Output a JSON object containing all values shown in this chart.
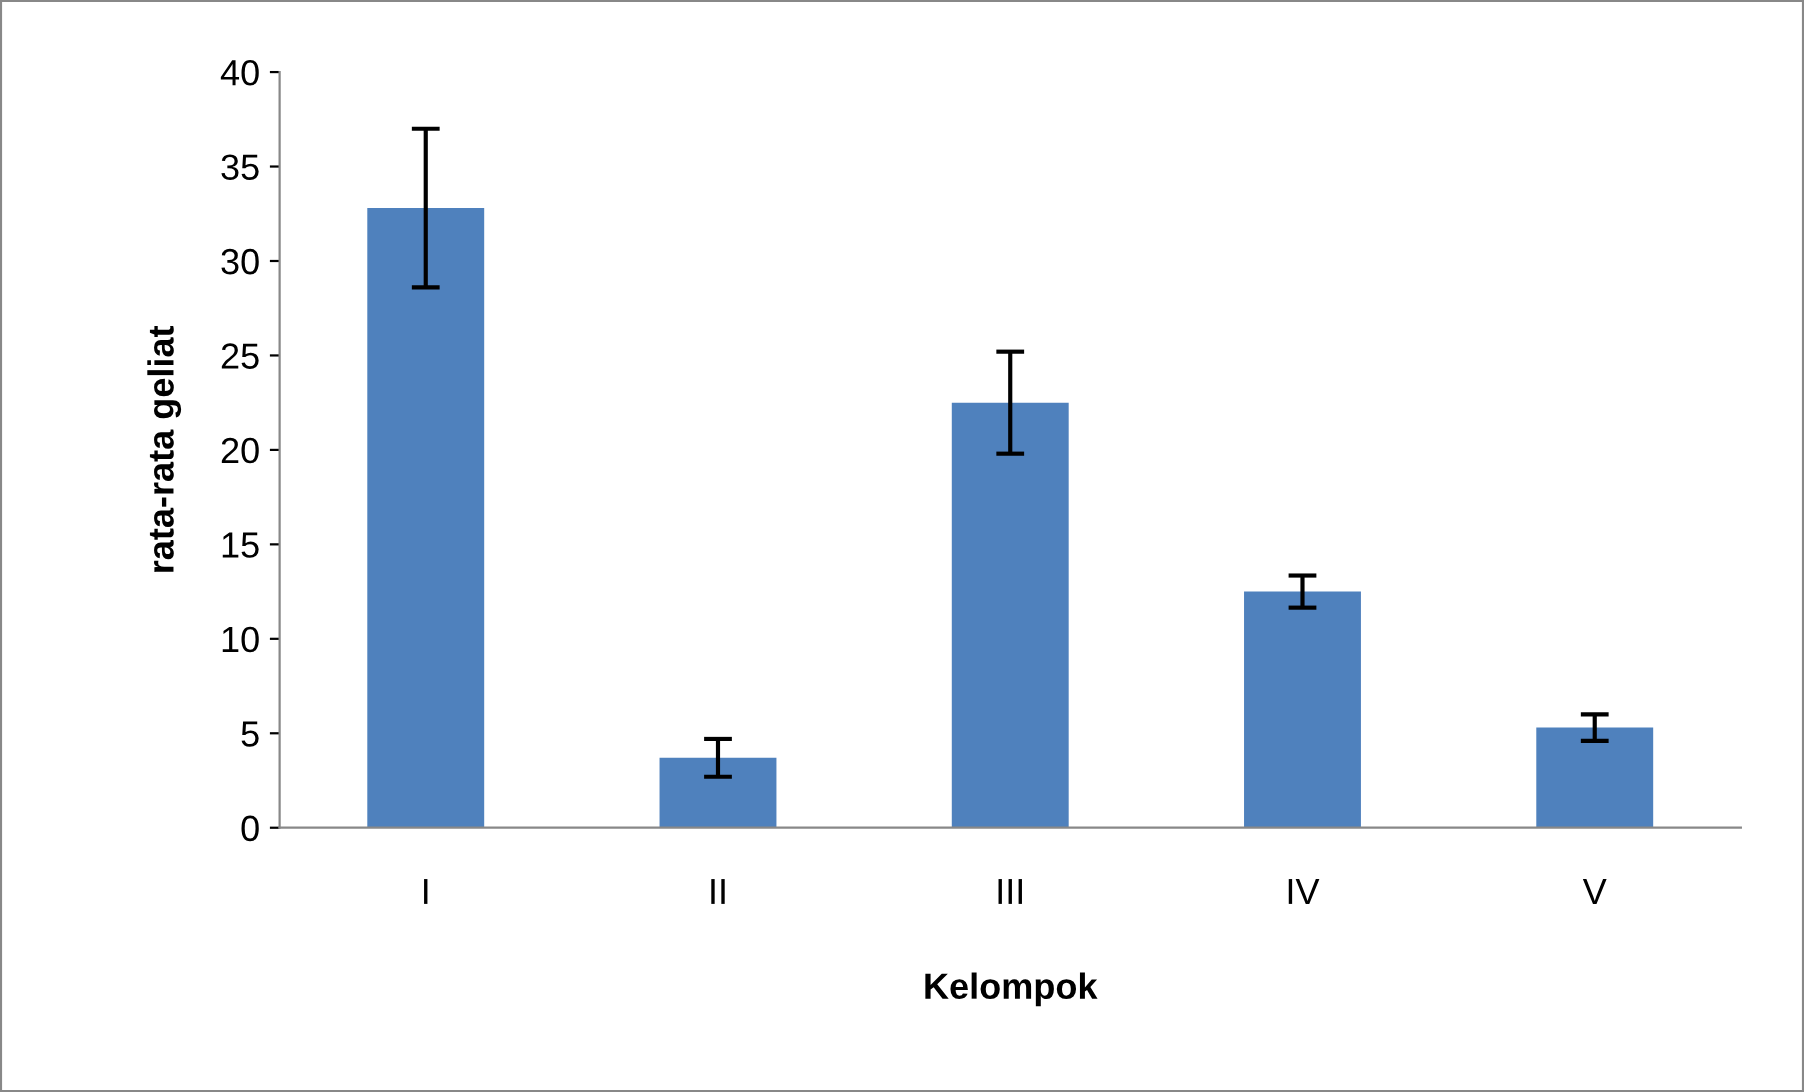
{
  "chart_data": {
    "type": "bar",
    "xlabel": "Kelompok",
    "ylabel": "rata-rata geliat",
    "categories": [
      "I",
      "II",
      "III",
      "IV",
      "V"
    ],
    "values": [
      32.8,
      3.7,
      22.5,
      12.5,
      5.3
    ],
    "errors": [
      4.2,
      1.0,
      2.7,
      0.85,
      0.7
    ],
    "color": "#4f81bd",
    "ylim": [
      0,
      40
    ],
    "yticks": [
      0,
      5,
      10,
      15,
      20,
      25,
      30,
      35,
      40
    ],
    "grid": false,
    "legend": false
  }
}
